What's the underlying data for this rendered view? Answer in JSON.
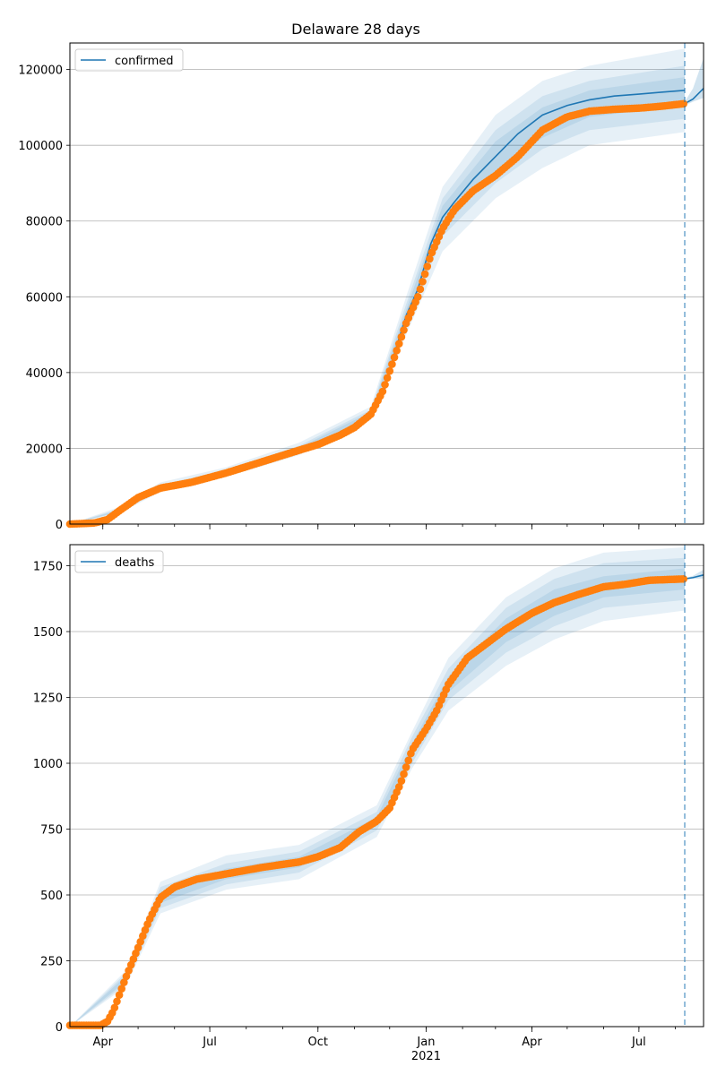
{
  "title": "Delaware 28 days",
  "colors": {
    "model_line": "#1f77b4",
    "band": "#1f77b4",
    "observed": "#ff7f0e",
    "forecast_marker": "#1f77b4",
    "grid": "#b0b0b0"
  },
  "x_axis": {
    "ticks": [
      {
        "date": "2020-04-01",
        "label": "Apr"
      },
      {
        "date": "2020-07-01",
        "label": "Jul"
      },
      {
        "date": "2020-10-01",
        "label": "Oct"
      },
      {
        "date": "2021-01-01",
        "label": "Jan"
      },
      {
        "date": "2021-04-01",
        "label": "Apr"
      },
      {
        "date": "2021-07-01",
        "label": "Jul"
      }
    ],
    "year_label": "2021"
  },
  "chart_data": [
    {
      "type": "line",
      "legend": "confirmed",
      "legend_position": "upper-left",
      "grid": true,
      "xlim": [
        "2020-03-04",
        "2021-08-25"
      ],
      "ylim": [
        0,
        127000
      ],
      "yticks": [
        0,
        20000,
        40000,
        60000,
        80000,
        100000,
        120000
      ],
      "forecast_start": "2021-08-09",
      "model": {
        "x": [
          "2020-03-04",
          "2020-03-25",
          "2020-04-15",
          "2020-05-01",
          "2020-05-20",
          "2020-06-15",
          "2020-07-15",
          "2020-08-15",
          "2020-09-15",
          "2020-10-01",
          "2020-10-20",
          "2020-11-01",
          "2020-11-15",
          "2020-11-25",
          "2020-12-05",
          "2020-12-15",
          "2020-12-25",
          "2021-01-05",
          "2021-01-15",
          "2021-01-25",
          "2021-02-10",
          "2021-03-01",
          "2021-03-20",
          "2021-04-10",
          "2021-05-01",
          "2021-05-20",
          "2021-06-10",
          "2021-07-01",
          "2021-07-20",
          "2021-08-09"
        ],
        "y": [
          0,
          300,
          3500,
          7000,
          9500,
          11000,
          13500,
          16500,
          19500,
          21500,
          24000,
          26000,
          29000,
          33500,
          45000,
          55000,
          62000,
          74000,
          81000,
          85000,
          91000,
          97000,
          103000,
          108000,
          110500,
          112000,
          113000,
          113500,
          114000,
          114500
        ]
      },
      "bands": [
        {
          "x": [
            "2020-03-04",
            "2020-04-15",
            "2020-05-20",
            "2020-07-15",
            "2020-09-15",
            "2020-11-15",
            "2020-12-15",
            "2021-01-15",
            "2021-03-01",
            "2021-04-10",
            "2021-05-20",
            "2021-08-09"
          ],
          "lower": [
            0,
            2800,
            8500,
            12500,
            18200,
            27500,
            50000,
            72000,
            86000,
            94000,
            100000,
            103500
          ],
          "upper": [
            0,
            4500,
            11000,
            15000,
            21500,
            31000,
            60000,
            89000,
            108000,
            117000,
            121000,
            125500
          ]
        },
        {
          "x": [
            "2020-03-04",
            "2020-04-15",
            "2020-05-20",
            "2020-07-15",
            "2020-09-15",
            "2020-11-15",
            "2020-12-15",
            "2021-01-15",
            "2021-03-01",
            "2021-04-10",
            "2021-05-20",
            "2021-08-09"
          ],
          "lower": [
            0,
            3100,
            8900,
            13000,
            18700,
            28000,
            52000,
            76000,
            90000,
            99000,
            104000,
            107000
          ],
          "upper": [
            0,
            4000,
            10300,
            14300,
            20700,
            30200,
            58000,
            86000,
            104000,
            113000,
            117000,
            121000
          ]
        },
        {
          "x": [
            "2020-03-04",
            "2020-04-15",
            "2020-05-20",
            "2020-07-15",
            "2020-09-15",
            "2020-11-15",
            "2020-12-15",
            "2021-01-15",
            "2021-03-01",
            "2021-04-10",
            "2021-05-20",
            "2021-08-09"
          ],
          "lower": [
            0,
            3300,
            9200,
            13300,
            19100,
            28500,
            54000,
            78000,
            93000,
            102000,
            107500,
            110500
          ],
          "upper": [
            0,
            3700,
            9900,
            13900,
            20200,
            29600,
            56500,
            84000,
            101000,
            110000,
            114500,
            118000
          ]
        }
      ],
      "forecast": {
        "x": [
          "2021-08-09",
          "2021-08-16",
          "2021-08-25"
        ],
        "y": [
          111000,
          112200,
          115000
        ],
        "lower": [
          110500,
          111500,
          112500
        ],
        "upper": [
          111500,
          115000,
          123000
        ]
      },
      "observed": {
        "x": [
          "2020-03-04",
          "2020-03-25",
          "2020-04-05",
          "2020-04-15",
          "2020-05-01",
          "2020-05-20",
          "2020-06-15",
          "2020-07-15",
          "2020-08-15",
          "2020-09-15",
          "2020-10-01",
          "2020-10-20",
          "2020-11-01",
          "2020-11-15",
          "2020-11-25",
          "2020-12-05",
          "2020-12-15",
          "2020-12-25",
          "2021-01-05",
          "2021-01-15",
          "2021-01-25",
          "2021-02-10",
          "2021-03-01",
          "2021-03-20",
          "2021-04-10",
          "2021-05-01",
          "2021-05-20",
          "2021-06-10",
          "2021-07-01",
          "2021-07-20",
          "2021-08-09"
        ],
        "y": [
          0,
          300,
          1200,
          3500,
          7000,
          9500,
          11000,
          13500,
          16500,
          19500,
          21000,
          23500,
          25500,
          29000,
          35000,
          44000,
          53000,
          60000,
          71000,
          78000,
          83000,
          88000,
          92000,
          97000,
          104000,
          107500,
          109000,
          109500,
          109800,
          110300,
          111000
        ]
      }
    },
    {
      "type": "line",
      "legend": "deaths",
      "legend_position": "upper-left",
      "grid": true,
      "xlim": [
        "2020-03-04",
        "2021-08-25"
      ],
      "ylim": [
        0,
        1830
      ],
      "yticks": [
        0,
        250,
        500,
        750,
        1000,
        1250,
        1500,
        1750
      ],
      "forecast_start": "2021-08-09",
      "model": {
        "x": [
          "2020-03-04",
          "2020-03-30",
          "2020-04-10",
          "2020-04-20",
          "2020-05-01",
          "2020-05-10",
          "2020-05-20",
          "2020-06-01",
          "2020-06-20",
          "2020-07-15",
          "2020-08-15",
          "2020-09-15",
          "2020-10-01",
          "2020-10-20",
          "2020-11-05",
          "2020-11-20",
          "2020-12-01",
          "2020-12-10",
          "2020-12-20",
          "2021-01-01",
          "2021-01-10",
          "2021-01-20",
          "2021-02-05",
          "2021-02-20",
          "2021-03-10",
          "2021-04-01",
          "2021-04-20",
          "2021-05-10",
          "2021-06-01",
          "2021-06-20",
          "2021-07-10",
          "2021-08-09"
        ],
        "y": [
          0,
          5,
          60,
          180,
          300,
          400,
          490,
          530,
          560,
          580,
          605,
          625,
          645,
          680,
          740,
          780,
          830,
          920,
          1050,
          1130,
          1200,
          1300,
          1400,
          1450,
          1510,
          1570,
          1610,
          1640,
          1670,
          1680,
          1695,
          1700
        ]
      },
      "bands": [
        {
          "x": [
            "2020-03-04",
            "2020-04-20",
            "2020-05-20",
            "2020-07-15",
            "2020-09-15",
            "2020-11-20",
            "2020-12-20",
            "2021-01-20",
            "2021-03-10",
            "2021-04-20",
            "2021-06-01",
            "2021-08-09"
          ],
          "lower": [
            0,
            150,
            430,
            520,
            560,
            720,
            980,
            1200,
            1370,
            1470,
            1540,
            1580
          ],
          "upper": [
            0,
            210,
            550,
            650,
            690,
            840,
            1120,
            1400,
            1630,
            1740,
            1800,
            1820
          ]
        },
        {
          "x": [
            "2020-03-04",
            "2020-04-20",
            "2020-05-20",
            "2020-07-15",
            "2020-09-15",
            "2020-11-20",
            "2020-12-20",
            "2021-01-20",
            "2021-03-10",
            "2021-04-20",
            "2021-06-01",
            "2021-08-09"
          ],
          "lower": [
            0,
            160,
            450,
            540,
            585,
            745,
            1000,
            1240,
            1420,
            1520,
            1590,
            1620
          ],
          "upper": [
            0,
            200,
            530,
            620,
            665,
            815,
            1100,
            1360,
            1590,
            1700,
            1760,
            1780
          ]
        },
        {
          "x": [
            "2020-03-04",
            "2020-04-20",
            "2020-05-20",
            "2020-07-15",
            "2020-09-15",
            "2020-11-20",
            "2020-12-20",
            "2021-01-20",
            "2021-03-10",
            "2021-04-20",
            "2021-06-01",
            "2021-08-09"
          ],
          "lower": [
            0,
            170,
            470,
            560,
            605,
            765,
            1025,
            1270,
            1460,
            1560,
            1630,
            1660
          ],
          "upper": [
            0,
            190,
            510,
            600,
            645,
            795,
            1075,
            1330,
            1550,
            1660,
            1710,
            1740
          ]
        }
      ],
      "forecast": {
        "x": [
          "2021-08-09",
          "2021-08-16",
          "2021-08-25"
        ],
        "y": [
          1700,
          1705,
          1715
        ],
        "lower": [
          1698,
          1700,
          1702
        ],
        "upper": [
          1702,
          1712,
          1735
        ]
      },
      "observed": {
        "x": [
          "2020-03-04",
          "2020-03-30",
          "2020-04-05",
          "2020-04-10",
          "2020-04-20",
          "2020-05-01",
          "2020-05-10",
          "2020-05-20",
          "2020-06-01",
          "2020-06-20",
          "2020-07-15",
          "2020-08-15",
          "2020-09-15",
          "2020-10-01",
          "2020-10-20",
          "2020-11-05",
          "2020-11-20",
          "2020-12-01",
          "2020-12-10",
          "2020-12-20",
          "2021-01-01",
          "2021-01-10",
          "2021-01-20",
          "2021-02-05",
          "2021-02-20",
          "2021-03-10",
          "2021-04-01",
          "2021-04-20",
          "2021-05-10",
          "2021-06-01",
          "2021-06-20",
          "2021-07-10",
          "2021-08-09"
        ],
        "y": [
          5,
          5,
          20,
          60,
          180,
          300,
          400,
          490,
          530,
          560,
          580,
          605,
          625,
          645,
          680,
          740,
          780,
          830,
          920,
          1050,
          1130,
          1200,
          1300,
          1400,
          1450,
          1510,
          1570,
          1610,
          1640,
          1670,
          1680,
          1695,
          1700
        ]
      }
    }
  ]
}
